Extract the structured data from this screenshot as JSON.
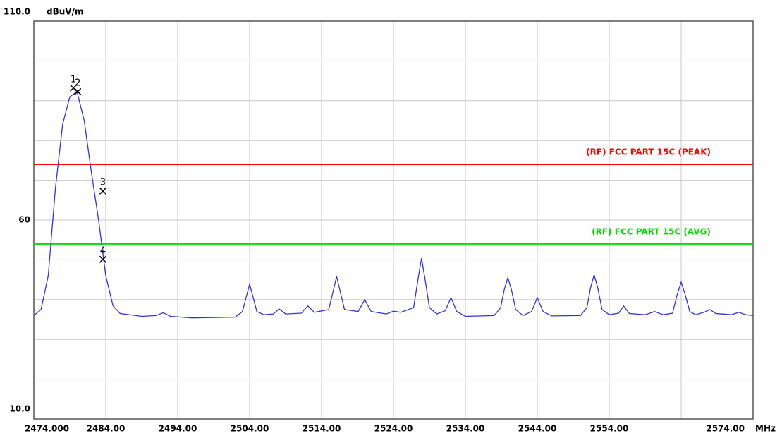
{
  "chart_data": {
    "type": "line",
    "y_label": "dBuV/m",
    "x_unit": "MHz",
    "xlim": [
      2474,
      2574
    ],
    "ylim": [
      10,
      110
    ],
    "xticks": [
      {
        "value": 2474,
        "label": "2474.000"
      },
      {
        "value": 2484,
        "label": "2484.00"
      },
      {
        "value": 2494,
        "label": "2494.00"
      },
      {
        "value": 2504,
        "label": "2504.00"
      },
      {
        "value": 2514,
        "label": "2514.00"
      },
      {
        "value": 2524,
        "label": "2524.00"
      },
      {
        "value": 2534,
        "label": "2534.00"
      },
      {
        "value": 2544,
        "label": "2544.00"
      },
      {
        "value": 2554,
        "label": "2554.00"
      },
      {
        "value": 2564,
        "label": null
      },
      {
        "value": 2574,
        "label": "2574.00"
      }
    ],
    "yticks": [
      {
        "value": 10,
        "label": "10.0"
      },
      {
        "value": 20,
        "label": null
      },
      {
        "value": 30,
        "label": null
      },
      {
        "value": 40,
        "label": null
      },
      {
        "value": 50,
        "label": null
      },
      60,
      {
        "value": 70,
        "label": null
      },
      {
        "value": 80,
        "label": null
      },
      {
        "value": 90,
        "label": null
      },
      {
        "value": 100,
        "label": null
      },
      {
        "value": 110,
        "label": "110.0"
      }
    ],
    "grid": true,
    "series": [
      {
        "color": "#3333dd",
        "x": [
          2474,
          2475,
          2476,
          2477,
          2478,
          2479,
          2480,
          2481,
          2482,
          2483,
          2484,
          2485,
          2486,
          2489,
          2491,
          2492,
          2493,
          2496,
          2502,
          2503,
          2503.5,
          2504,
          2504.5,
          2505,
          2506,
          2507.3,
          2508.1,
          2509,
          2511.2,
          2512.1,
          2513,
          2515,
          2515.6,
          2516.1,
          2516.6,
          2517.2,
          2519.1,
          2520,
          2520.9,
          2523,
          2524,
          2525,
          2526.8,
          2527.4,
          2527.9,
          2528.4,
          2529,
          2530,
          2531.2,
          2532,
          2532.8,
          2534,
          2538,
          2538.9,
          2539.4,
          2539.9,
          2540.4,
          2541,
          2542,
          2543.2,
          2544,
          2544.8,
          2546,
          2550,
          2550.9,
          2551.4,
          2551.9,
          2552.4,
          2553,
          2554,
          2555.3,
          2556,
          2556.8,
          2559,
          2560.3,
          2561.5,
          2562.8,
          2563.4,
          2564,
          2564.6,
          2565.2,
          2566,
          2567.2,
          2568,
          2568.8,
          2571,
          2572,
          2573,
          2574
        ],
        "values": [
          36,
          37.5,
          46,
          68,
          84,
          91,
          92.3,
          85,
          72,
          60,
          46,
          38.5,
          36.5,
          35.8,
          36,
          36.7,
          35.8,
          35.4,
          35.6,
          37,
          40.5,
          43.9,
          40.5,
          37,
          36.2,
          36.4,
          37.7,
          36.4,
          36.6,
          38.4,
          36.8,
          37.5,
          42,
          45.8,
          42,
          37.5,
          37,
          40,
          37,
          36.4,
          37.1,
          36.8,
          38,
          45,
          50.4,
          45,
          38,
          36.4,
          37.2,
          40.5,
          37,
          35.8,
          36,
          38,
          42.5,
          45.5,
          42.5,
          37.5,
          36,
          37,
          40.5,
          37,
          35.9,
          36,
          38,
          43,
          46.2,
          43,
          37.5,
          36.2,
          36.6,
          38.4,
          36.5,
          36.2,
          37,
          36.2,
          36.6,
          41,
          44.4,
          41,
          37,
          36.2,
          36.8,
          37.5,
          36.5,
          36.2,
          36.8,
          36.2,
          36
        ]
      }
    ],
    "limit_lines": [
      {
        "name": "(RF) FCC PART 15C (PEAK)",
        "color": "#ff0000",
        "value": 74
      },
      {
        "name": "(RF) FCC PART 15C (AVG)",
        "color": "#00dd00",
        "value": 54
      }
    ],
    "markers": {
      "labels": [
        "1",
        "2",
        "3",
        "4"
      ],
      "x": [
        2479.5,
        2480.1,
        2483.6,
        2483.6
      ],
      "values": [
        93.2,
        92.3,
        67.3,
        50.1
      ],
      "color": "#000000"
    }
  }
}
